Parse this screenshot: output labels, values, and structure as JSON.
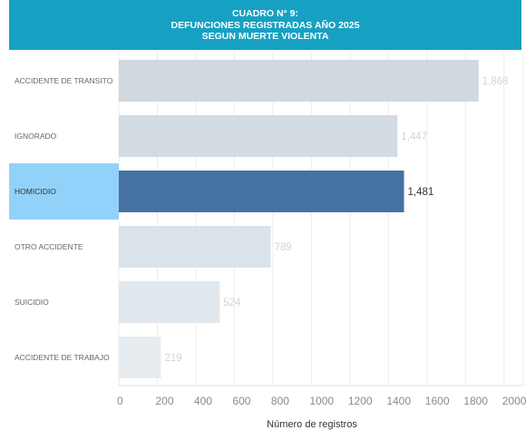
{
  "header": {
    "title_lines": [
      "CUADRO N° 9:",
      "DEFUNCIONES REGISTRADAS AÑO 2025",
      "SEGUN MUERTE VIOLENTA"
    ]
  },
  "chart_data": {
    "type": "bar",
    "orientation": "horizontal",
    "categories": [
      "ACCIDENTE DE TRANSITO",
      "IGNORADO",
      "HOMICIDIO",
      "OTRO ACCIDENTE",
      "SUICIDIO",
      "ACCIDENTE DE TRABAJO"
    ],
    "values": [
      1868,
      1447,
      1481,
      789,
      524,
      219
    ],
    "value_labels": [
      "1,868",
      "1,447",
      "1,481",
      "789",
      "524",
      "219"
    ],
    "selected_category": "HOMICIDIO",
    "xlabel": "Número de registros",
    "ylabel": "",
    "xlim": [
      0,
      2100
    ],
    "xticks": [
      0,
      200,
      400,
      600,
      800,
      1000,
      1200,
      1400,
      1600,
      1800,
      2000
    ],
    "grid": true,
    "colors": {
      "bars": [
        "#d0d8e0",
        "#d3dbe3",
        "#4572a3",
        "#dbe3ea",
        "#e0e8ee",
        "#e6ecf0"
      ],
      "selected_label_bg": "#92d1fa",
      "value_label": "#d4d4d4",
      "value_label_selected": "#333333",
      "gridline": "#ececec",
      "axis_text": "#8a8a8a",
      "category_text": "#666666"
    }
  }
}
